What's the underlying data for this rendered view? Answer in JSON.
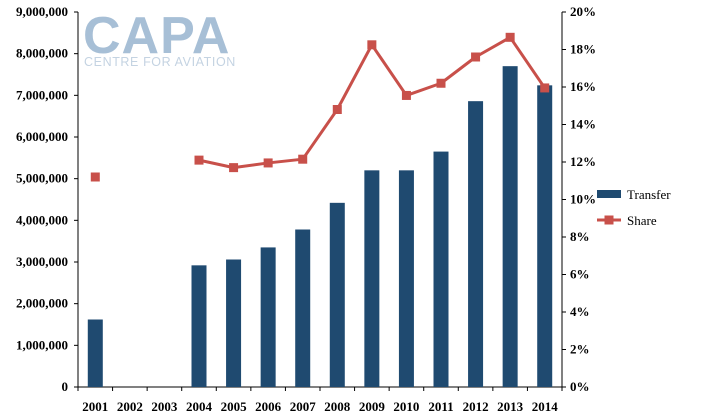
{
  "logo": {
    "main": "CAPA",
    "sub": "CENTRE FOR AVIATION"
  },
  "chart_data": {
    "type": "bar",
    "categories": [
      "2001",
      "2002",
      "2003",
      "2004",
      "2005",
      "2006",
      "2007",
      "2008",
      "2009",
      "2010",
      "2011",
      "2012",
      "2013",
      "2014"
    ],
    "series": [
      {
        "name": "Transfer",
        "type": "bar",
        "axis": "left",
        "color": "#1f4a70",
        "values": [
          1620000,
          null,
          null,
          2920000,
          3060000,
          3350000,
          3780000,
          4420000,
          5200000,
          5200000,
          5650000,
          6860000,
          7700000,
          7240000
        ]
      },
      {
        "name": "Share",
        "type": "line",
        "axis": "right",
        "color": "#c8504a",
        "values": [
          11.2,
          null,
          null,
          12.1,
          11.7,
          11.95,
          12.15,
          14.8,
          18.25,
          15.55,
          16.2,
          17.6,
          18.65,
          15.95
        ]
      }
    ],
    "y_left": {
      "ticks": [
        "0",
        "1,000,000",
        "2,000,000",
        "3,000,000",
        "4,000,000",
        "5,000,000",
        "6,000,000",
        "7,000,000",
        "8,000,000",
        "9,000,000"
      ],
      "ylim": [
        0,
        9000000
      ]
    },
    "y_right": {
      "ticks": [
        "0%",
        "2%",
        "4%",
        "6%",
        "8%",
        "10%",
        "12%",
        "14%",
        "16%",
        "18%",
        "20%"
      ],
      "ylim": [
        0,
        20
      ]
    },
    "legend": {
      "position": "right",
      "entries": [
        "Transfer",
        "Share"
      ]
    },
    "grid": false
  }
}
